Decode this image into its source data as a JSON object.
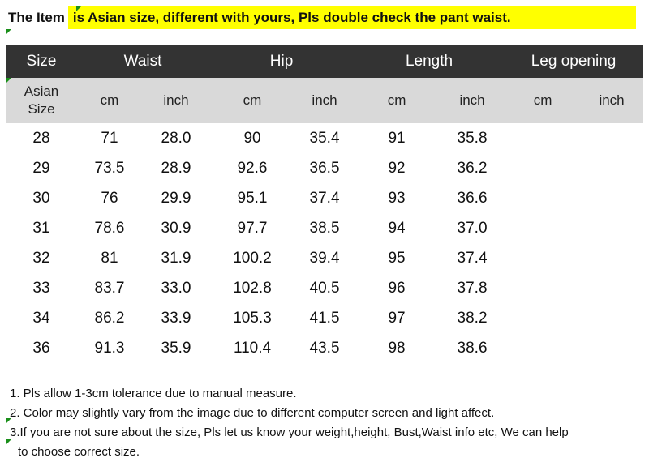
{
  "banner": {
    "left_text": "The Item",
    "right_text": "is Asian size, different with yours, Pls double check the pant waist."
  },
  "table": {
    "header": [
      "Size",
      "Waist",
      "Hip",
      "Length",
      "Leg opening"
    ],
    "subheader": [
      "Asian Size",
      "cm",
      "inch",
      "cm",
      "inch",
      "cm",
      "inch",
      "cm",
      "inch"
    ],
    "rows": [
      [
        "28",
        "71",
        "28.0",
        "90",
        "35.4",
        "91",
        "35.8",
        "",
        ""
      ],
      [
        "29",
        "73.5",
        "28.9",
        "92.6",
        "36.5",
        "92",
        "36.2",
        "",
        ""
      ],
      [
        "30",
        "76",
        "29.9",
        "95.1",
        "37.4",
        "93",
        "36.6",
        "",
        ""
      ],
      [
        "31",
        "78.6",
        "30.9",
        "97.7",
        "38.5",
        "94",
        "37.0",
        "",
        ""
      ],
      [
        "32",
        "81",
        "31.9",
        "100.2",
        "39.4",
        "95",
        "37.4",
        "",
        ""
      ],
      [
        "33",
        "83.7",
        "33.0",
        "102.8",
        "40.5",
        "96",
        "37.8",
        "",
        ""
      ],
      [
        "34",
        "86.2",
        "33.9",
        "105.3",
        "41.5",
        "97",
        "38.2",
        "",
        ""
      ],
      [
        "36",
        "91.3",
        "35.9",
        "110.4",
        "43.5",
        "98",
        "38.6",
        "",
        ""
      ]
    ]
  },
  "notes": [
    "1. Pls allow 1-3cm tolerance due to manual measure.",
    "2. Color may slightly vary from the image due to different computer screen and light affect.",
    "3.If you are not sure about the size, Pls let us know your weight,height, Bust,Waist info etc, We can help",
    "to choose correct size."
  ],
  "colors": {
    "banner_highlight": "#ffff00",
    "header_bg": "#333333",
    "subheader_bg": "#d9d9d9",
    "cell_marker": "#1a8f1a"
  }
}
